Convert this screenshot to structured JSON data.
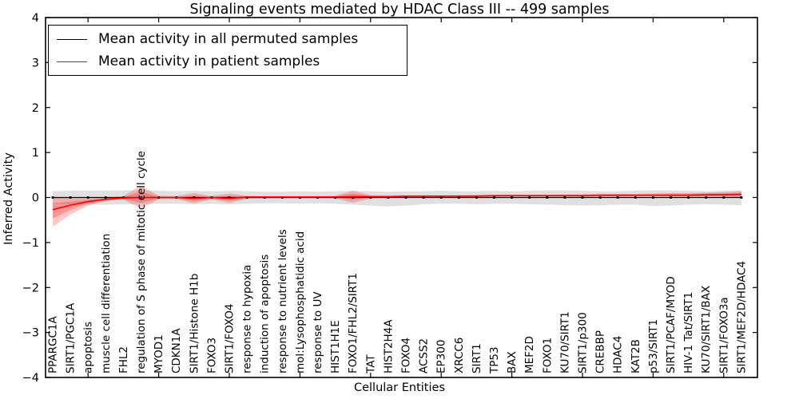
{
  "title": "Signaling events mediated by HDAC Class III -- 499 samples",
  "legend": {
    "position": "upper left",
    "items": [
      {
        "label": "Mean activity in all permuted samples",
        "color": "#000000"
      },
      {
        "label": "Mean activity in patient samples",
        "color": "#ff0000"
      }
    ]
  },
  "axes": {
    "ylabel": "Inferred Activity",
    "xlabel": "Cellular Entities",
    "yticks": [
      4,
      3,
      2,
      1,
      0,
      -1,
      -2,
      -3,
      -4
    ],
    "ylim": [
      -4,
      4
    ]
  },
  "chart_data": {
    "type": "line",
    "title": "Signaling events mediated by HDAC Class III -- 499 samples",
    "xlabel": "Cellular Entities",
    "ylabel": "Inferred Activity",
    "ylim": [
      -4,
      4
    ],
    "grid": false,
    "legend_position": "upper left",
    "categories": [
      "PPARGC1A",
      "SIRT1/PGC1A",
      "apoptosis",
      "muscle cell differentiation",
      "FHL2",
      "regulation of S phase of mitotic cell cycle",
      "MYOD1",
      "CDKN1A",
      "SIRT1/Histone H1b",
      "FOXO3",
      "SIRT1/FOXO4",
      "response to hypoxia",
      "induction of apoptosis",
      "response to nutrient levels",
      "mol:Lysophosphatidic acid",
      "response to UV",
      "HIST1H1E",
      "FOXO1/FHL2/SIRT1",
      "TAT",
      "HIST2H4A",
      "FOXO4",
      "ACSS2",
      "EP300",
      "XRCC6",
      "SIRT1",
      "TP53",
      "BAX",
      "MEF2D",
      "FOXO1",
      "KU70/SIRT1",
      "SIRT1/p300",
      "CREBBP",
      "HDAC4",
      "KAT2B",
      "p53/SIRT1",
      "SIRT1/PCAF/MYOD",
      "HIV-1 Tat/SIRT1",
      "KU70/SIRT1/BAX",
      "SIRT1/FOXO3a",
      "SIRT1/MEF2D/HDAC4"
    ],
    "series": [
      {
        "name": "Mean activity in all permuted samples",
        "color": "#000000",
        "values": [
          0,
          0,
          0,
          0,
          0,
          0,
          0,
          0,
          0,
          0,
          0,
          0,
          0,
          0,
          0,
          0,
          0,
          0,
          0,
          0,
          0,
          0,
          0,
          0,
          0,
          0,
          0,
          0,
          0,
          0,
          0,
          0,
          0,
          0,
          0,
          0,
          0,
          0,
          0,
          0
        ]
      },
      {
        "name": "Mean activity in patient samples",
        "color": "#ff0000",
        "values": [
          -0.27,
          -0.17,
          -0.09,
          -0.04,
          -0.01,
          0,
          0,
          0,
          -0.02,
          0,
          -0.02,
          0.01,
          0.01,
          0.01,
          0.01,
          0.01,
          0.01,
          0.02,
          0.02,
          0.02,
          0.03,
          0.03,
          0.03,
          0.03,
          0.03,
          0.04,
          0.04,
          0.04,
          0.04,
          0.04,
          0.04,
          0.05,
          0.05,
          0.05,
          0.05,
          0.05,
          0.05,
          0.06,
          0.06,
          0.07
        ]
      }
    ],
    "bands": [
      {
        "name": "permuted samples range",
        "color": "#000000",
        "upper": [
          0.14,
          0.15,
          0.15,
          0.15,
          0.16,
          0.16,
          0.15,
          0.14,
          0.15,
          0.14,
          0.15,
          0.14,
          0.13,
          0.13,
          0.14,
          0.13,
          0.14,
          0.15,
          0.14,
          0.13,
          0.14,
          0.14,
          0.15,
          0.14,
          0.14,
          0.15,
          0.14,
          0.15,
          0.16,
          0.16,
          0.15,
          0.14,
          0.14,
          0.15,
          0.16,
          0.16,
          0.15,
          0.14,
          0.15,
          0.16
        ],
        "lower": [
          -0.14,
          -0.15,
          -0.16,
          -0.16,
          -0.15,
          -0.15,
          -0.14,
          -0.14,
          -0.15,
          -0.14,
          -0.15,
          -0.14,
          -0.13,
          -0.13,
          -0.14,
          -0.13,
          -0.14,
          -0.16,
          -0.18,
          -0.2,
          -0.18,
          -0.15,
          -0.14,
          -0.14,
          -0.15,
          -0.14,
          -0.14,
          -0.15,
          -0.16,
          -0.17,
          -0.18,
          -0.17,
          -0.16,
          -0.16,
          -0.19,
          -0.18,
          -0.16,
          -0.15,
          -0.16,
          -0.17
        ]
      },
      {
        "name": "patient samples range",
        "color": "#ff0000",
        "upper": [
          0.02,
          -0.02,
          -0.02,
          0.0,
          0.03,
          0.26,
          0.04,
          0.03,
          0.1,
          0.03,
          0.09,
          0.04,
          0.03,
          0.03,
          0.03,
          0.03,
          0.04,
          0.15,
          0.05,
          0.04,
          0.05,
          0.05,
          0.05,
          0.05,
          0.06,
          0.06,
          0.06,
          0.06,
          0.06,
          0.07,
          0.07,
          0.08,
          0.08,
          0.08,
          0.09,
          0.1,
          0.1,
          0.11,
          0.12,
          0.14
        ],
        "lower": [
          -0.65,
          -0.38,
          -0.18,
          -0.08,
          -0.05,
          -0.24,
          -0.04,
          -0.03,
          -0.13,
          -0.04,
          -0.12,
          -0.03,
          -0.02,
          -0.02,
          -0.02,
          -0.02,
          -0.02,
          -0.12,
          -0.02,
          -0.01,
          0.0,
          0.0,
          0.01,
          0.01,
          0.01,
          0.01,
          0.02,
          0.02,
          0.02,
          0.02,
          0.02,
          0.02,
          0.02,
          0.03,
          0.03,
          0.02,
          0.02,
          0.02,
          0.02,
          0.0
        ]
      }
    ]
  }
}
